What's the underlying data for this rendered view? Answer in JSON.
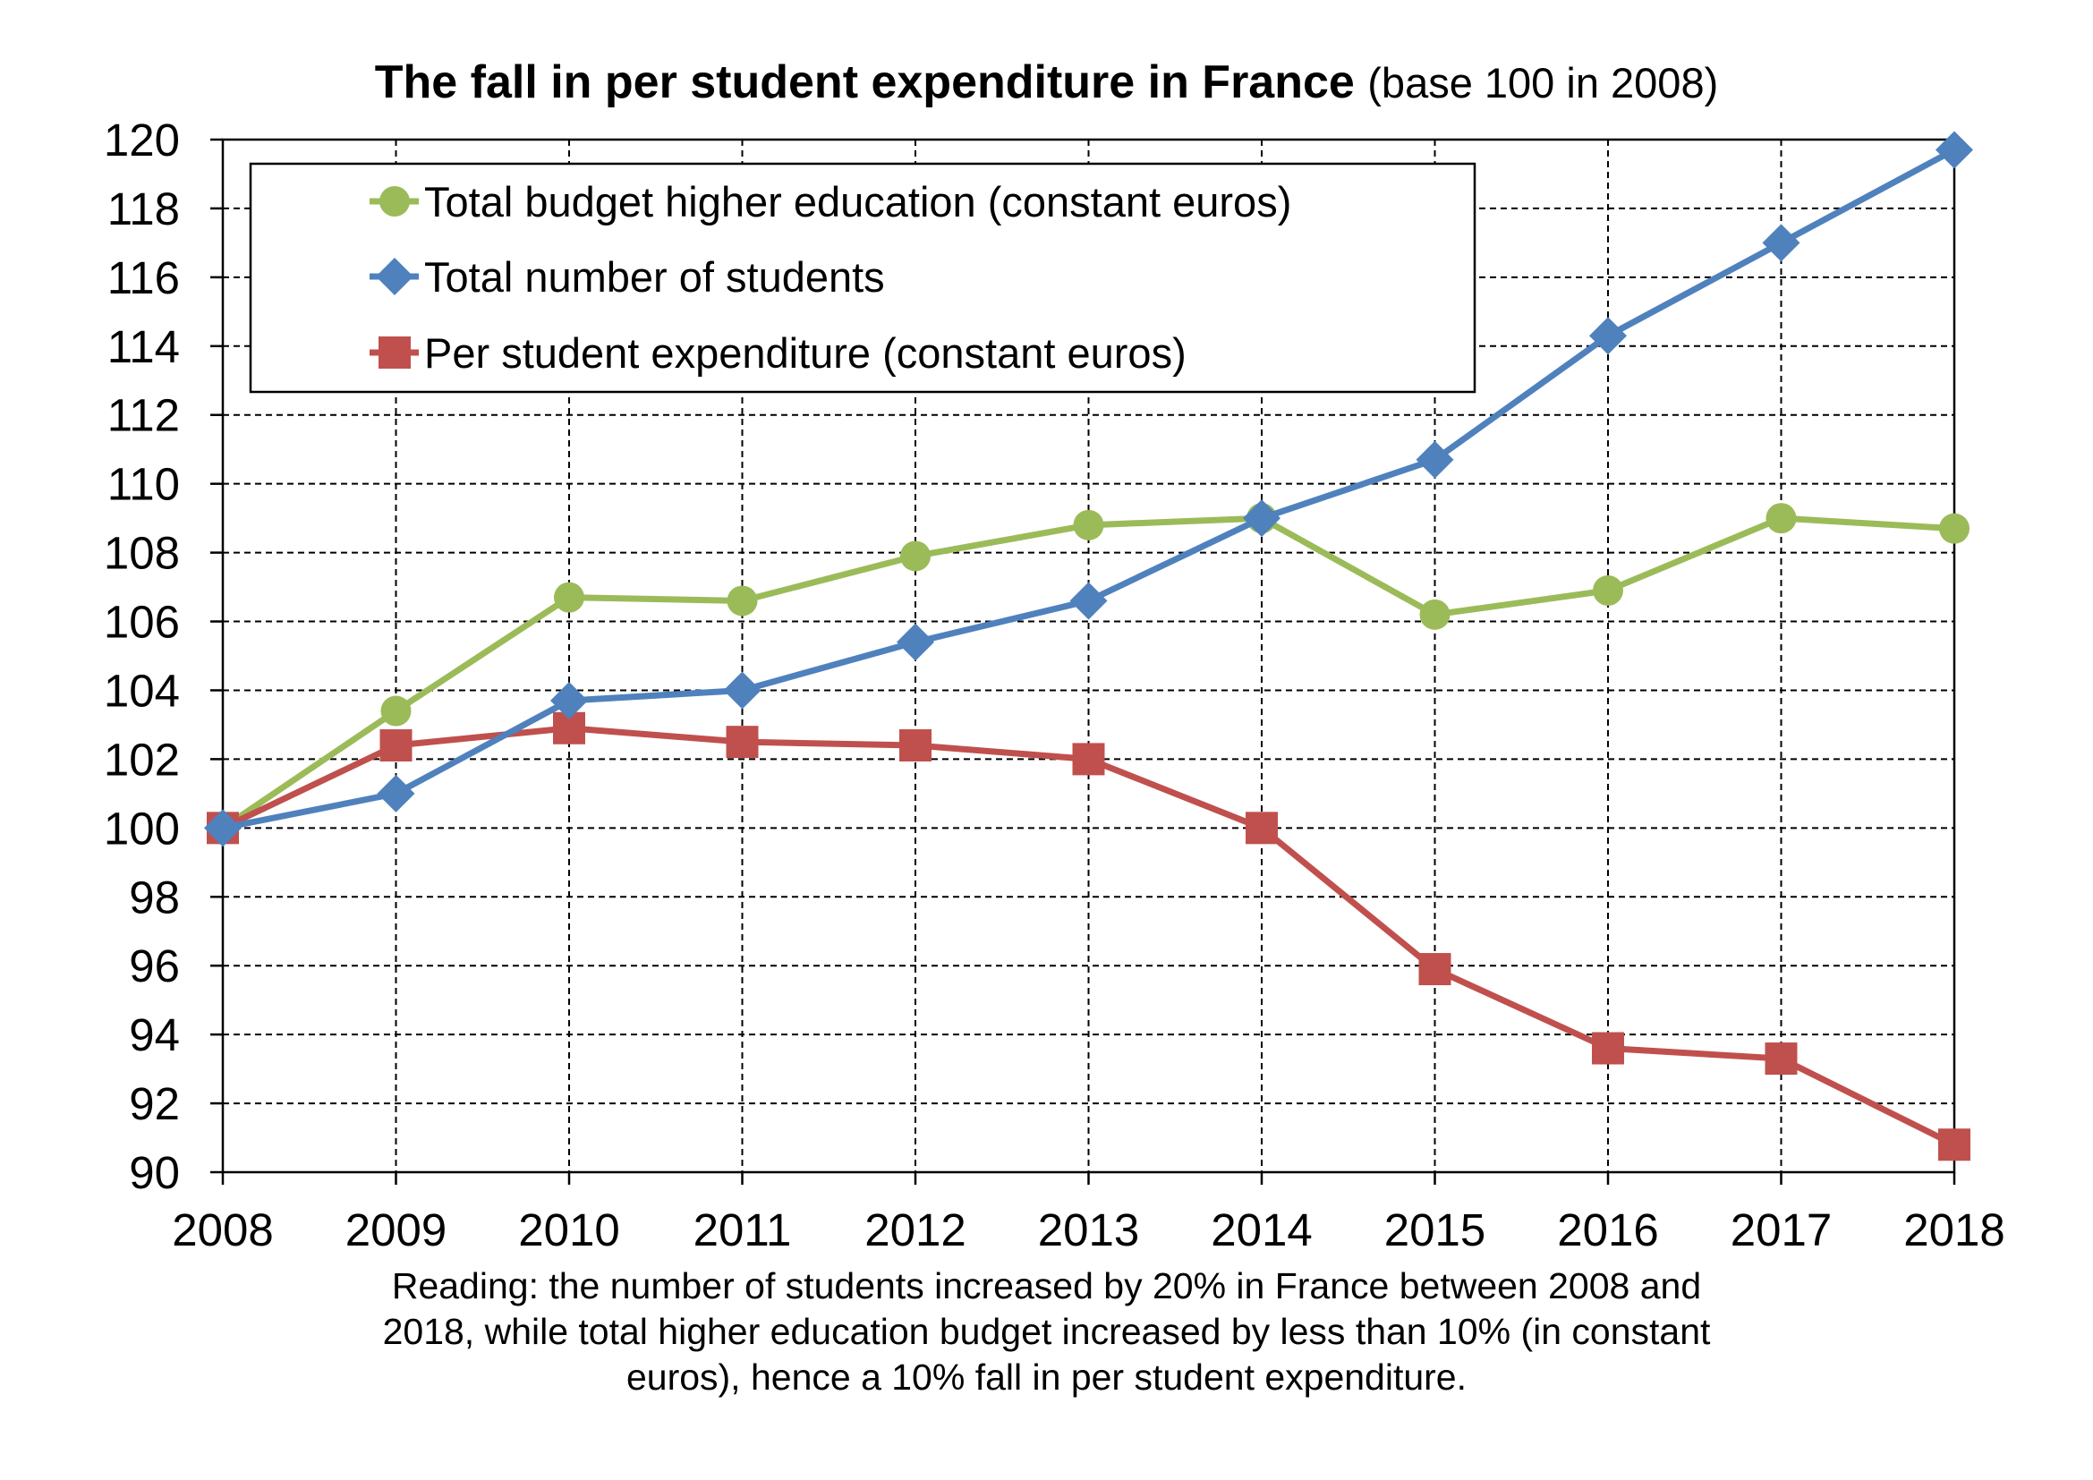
{
  "chart_data": {
    "type": "line",
    "title": "The fall in per student expenditure in France",
    "subtitle": "(base 100 in 2008)",
    "x": [
      2008,
      2009,
      2010,
      2011,
      2012,
      2013,
      2014,
      2015,
      2016,
      2017,
      2018
    ],
    "xlim": [
      2008,
      2018
    ],
    "ylim": [
      90,
      120
    ],
    "yticks": [
      90,
      92,
      94,
      96,
      98,
      100,
      102,
      104,
      106,
      108,
      110,
      112,
      114,
      116,
      118,
      120
    ],
    "grid": true,
    "legend_position": "top-left",
    "series": [
      {
        "name": "Total budget higher education (constant euros)",
        "marker": "circle",
        "color": "#9BBB59",
        "values": [
          100,
          103.4,
          106.7,
          106.6,
          107.9,
          108.8,
          109.0,
          106.2,
          106.9,
          109.0,
          108.7
        ]
      },
      {
        "name": "Total number of students",
        "marker": "diamond",
        "color": "#4F81BD",
        "values": [
          100,
          101.0,
          103.7,
          104.0,
          105.4,
          106.6,
          109.0,
          110.7,
          114.3,
          117.0,
          119.7
        ]
      },
      {
        "name": "Per student expenditure (constant euros)",
        "marker": "square",
        "color": "#C0504D",
        "values": [
          100,
          102.4,
          102.9,
          102.5,
          102.4,
          102.0,
          100.0,
          95.9,
          93.6,
          93.3,
          90.8
        ]
      }
    ],
    "note": [
      "Reading: the number of students increased by 20% in France between 2008 and",
      "2018, while total higher education budget increased by less than 10% (in constant",
      "euros), hence a 10% fall in per student expenditure."
    ]
  }
}
